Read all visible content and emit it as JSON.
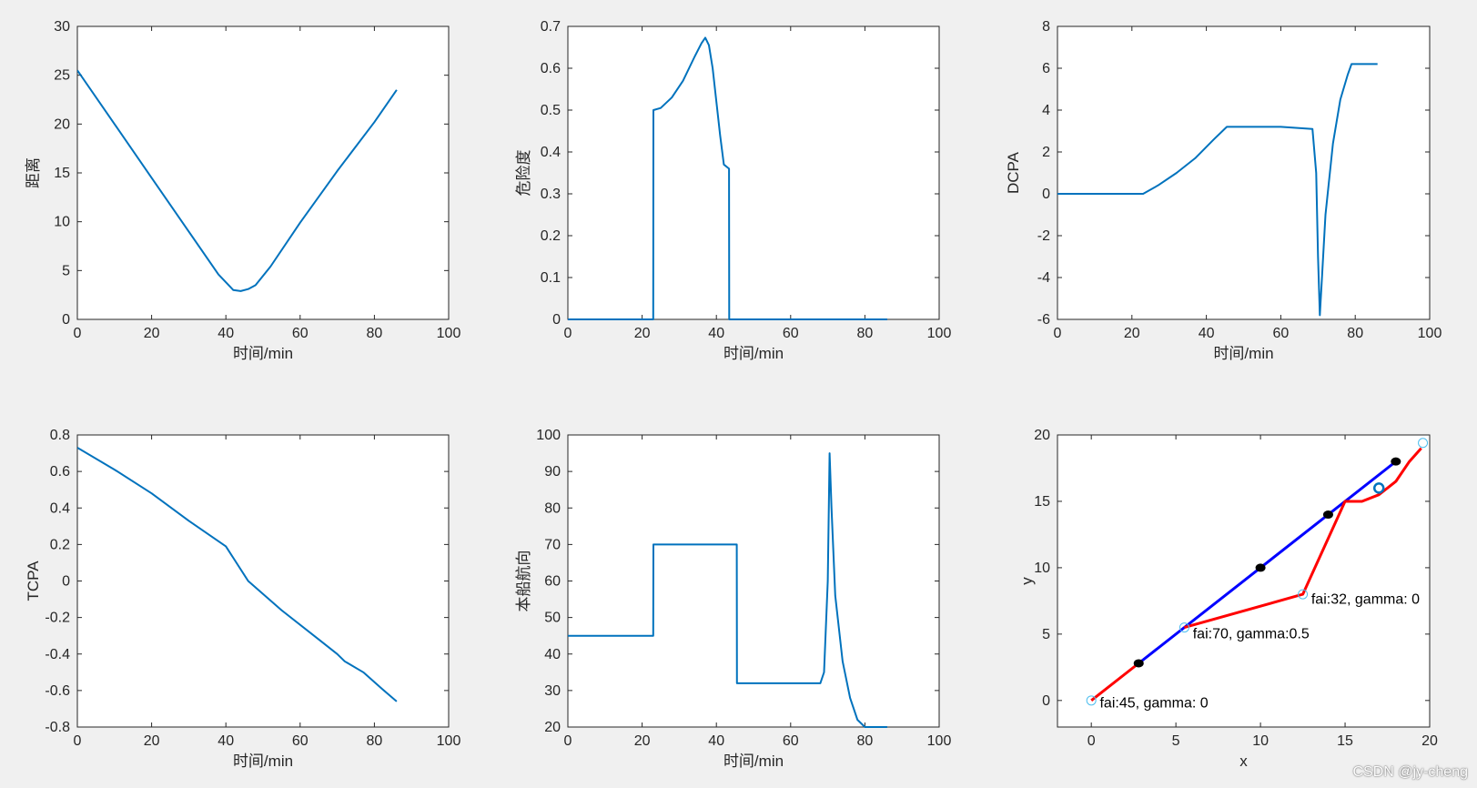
{
  "watermark": "CSDN @jy-cheng",
  "colors": {
    "matlab_blue": "#0072bd",
    "blue": "#0000ff",
    "red": "#ff0000",
    "black": "#000000",
    "teal": "#4dbeee"
  },
  "chart_data": [
    {
      "id": "distance",
      "type": "line",
      "xlabel": "时间/min",
      "ylabel": "距离",
      "xlim": [
        0,
        100
      ],
      "ylim": [
        0,
        30
      ],
      "xticks": [
        0,
        20,
        40,
        60,
        80,
        100
      ],
      "yticks": [
        0,
        5,
        10,
        15,
        20,
        25,
        30
      ],
      "series": [
        {
          "color": "#0072bd",
          "x": [
            0,
            10,
            20,
            30,
            38,
            42,
            44,
            46,
            48,
            52,
            60,
            70,
            80,
            86
          ],
          "y": [
            25.5,
            20,
            14.5,
            9,
            4.6,
            3.0,
            2.9,
            3.1,
            3.5,
            5.4,
            9.9,
            15.2,
            20.2,
            23.5
          ]
        }
      ]
    },
    {
      "id": "risk",
      "type": "line",
      "xlabel": "时间/min",
      "ylabel": "危险度",
      "xlim": [
        0,
        100
      ],
      "ylim": [
        0,
        0.7
      ],
      "xticks": [
        0,
        20,
        40,
        60,
        80,
        100
      ],
      "yticks": [
        0,
        0.1,
        0.2,
        0.3,
        0.4,
        0.5,
        0.6,
        0.7
      ],
      "series": [
        {
          "color": "#0072bd",
          "x": [
            0,
            23,
            23.05,
            25,
            28,
            31,
            34,
            36,
            37,
            38,
            39,
            40,
            41,
            42,
            43.4,
            43.45,
            86
          ],
          "y": [
            0,
            0,
            0.5,
            0.505,
            0.53,
            0.57,
            0.625,
            0.66,
            0.673,
            0.655,
            0.6,
            0.52,
            0.44,
            0.37,
            0.36,
            0,
            0
          ]
        }
      ]
    },
    {
      "id": "dcpa",
      "type": "line",
      "xlabel": "时间/min",
      "ylabel": "DCPA",
      "xlim": [
        0,
        100
      ],
      "ylim": [
        -6,
        8
      ],
      "xticks": [
        0,
        20,
        40,
        60,
        80,
        100
      ],
      "yticks": [
        -6,
        -4,
        -2,
        0,
        2,
        4,
        6,
        8
      ],
      "series": [
        {
          "color": "#0072bd",
          "x": [
            0,
            23,
            27,
            32,
            37,
            42,
            45.5,
            50,
            60,
            68.5,
            69.5,
            70,
            70.5,
            71,
            72,
            74,
            76,
            78,
            79,
            86
          ],
          "y": [
            0,
            0,
            0.4,
            1.0,
            1.7,
            2.6,
            3.2,
            3.2,
            3.2,
            3.1,
            1.0,
            -3.0,
            -5.8,
            -4.2,
            -1.0,
            2.4,
            4.5,
            5.7,
            6.2,
            6.2
          ]
        }
      ]
    },
    {
      "id": "tcpa",
      "type": "line",
      "xlabel": "时间/min",
      "ylabel": "TCPA",
      "xlim": [
        0,
        100
      ],
      "ylim": [
        -0.8,
        0.8
      ],
      "xticks": [
        0,
        20,
        40,
        60,
        80,
        100
      ],
      "yticks": [
        -0.8,
        -0.6,
        -0.4,
        -0.2,
        0,
        0.2,
        0.4,
        0.6,
        0.8
      ],
      "series": [
        {
          "color": "#0072bd",
          "x": [
            0,
            10,
            20,
            30,
            40,
            46,
            55,
            65,
            70,
            72,
            77,
            82,
            86
          ],
          "y": [
            0.73,
            0.61,
            0.48,
            0.33,
            0.19,
            0.0,
            -0.16,
            -0.32,
            -0.4,
            -0.44,
            -0.5,
            -0.59,
            -0.66
          ]
        }
      ]
    },
    {
      "id": "heading",
      "type": "line",
      "xlabel": "时间/min",
      "ylabel": "本船航向",
      "xlim": [
        0,
        100
      ],
      "ylim": [
        20,
        100
      ],
      "xticks": [
        0,
        20,
        40,
        60,
        80,
        100
      ],
      "yticks": [
        20,
        30,
        40,
        50,
        60,
        70,
        80,
        90,
        100
      ],
      "series": [
        {
          "color": "#0072bd",
          "x": [
            0,
            23,
            23.05,
            45.5,
            45.55,
            68,
            69,
            70,
            70.5,
            71,
            72,
            74,
            76,
            78,
            80,
            86
          ],
          "y": [
            45,
            45,
            70,
            70,
            32,
            32,
            35,
            60,
            95,
            80,
            56,
            38,
            28,
            22,
            20,
            20
          ]
        }
      ]
    },
    {
      "id": "trajectory",
      "type": "line",
      "xlabel": "x",
      "ylabel": "y",
      "xlim": [
        -2,
        20
      ],
      "ylim": [
        -2,
        20
      ],
      "xticks": [
        0,
        5,
        10,
        15,
        20
      ],
      "yticks": [
        0,
        5,
        10,
        15,
        20
      ],
      "series": [
        {
          "color": "#0000ff",
          "x": [
            2.8,
            18
          ],
          "y": [
            2.8,
            18
          ]
        },
        {
          "color": "#ff0000",
          "x": [
            0,
            2.8
          ],
          "y": [
            0,
            2.8
          ]
        },
        {
          "color": "#ff0000",
          "x": [
            5.5,
            12.5,
            15,
            16,
            17,
            18,
            18.8,
            19.5
          ],
          "y": [
            5.5,
            8,
            15,
            15,
            15.5,
            16.5,
            18,
            19
          ]
        }
      ],
      "markers": [
        {
          "style": "dot",
          "color": "#000000",
          "points": [
            [
              2.8,
              2.8
            ],
            [
              10,
              10
            ],
            [
              14,
              14
            ],
            [
              18,
              18
            ]
          ]
        },
        {
          "style": "ring",
          "color": "#0072bd",
          "points": [
            [
              17,
              16
            ]
          ]
        },
        {
          "style": "small-ring",
          "color": "#4dbeee",
          "points": [
            [
              0,
              0
            ],
            [
              5.5,
              5.5
            ],
            [
              12.5,
              8
            ],
            [
              19.6,
              19.4
            ]
          ]
        }
      ],
      "annotations": [
        {
          "text": "fai:45,  gamma:  0",
          "x": 0.5,
          "y": -0.1
        },
        {
          "text": "fai:70,  gamma:0.5",
          "x": 6.0,
          "y": 5.1
        },
        {
          "text": "fai:32,  gamma:  0",
          "x": 13.0,
          "y": 7.7
        }
      ]
    }
  ]
}
